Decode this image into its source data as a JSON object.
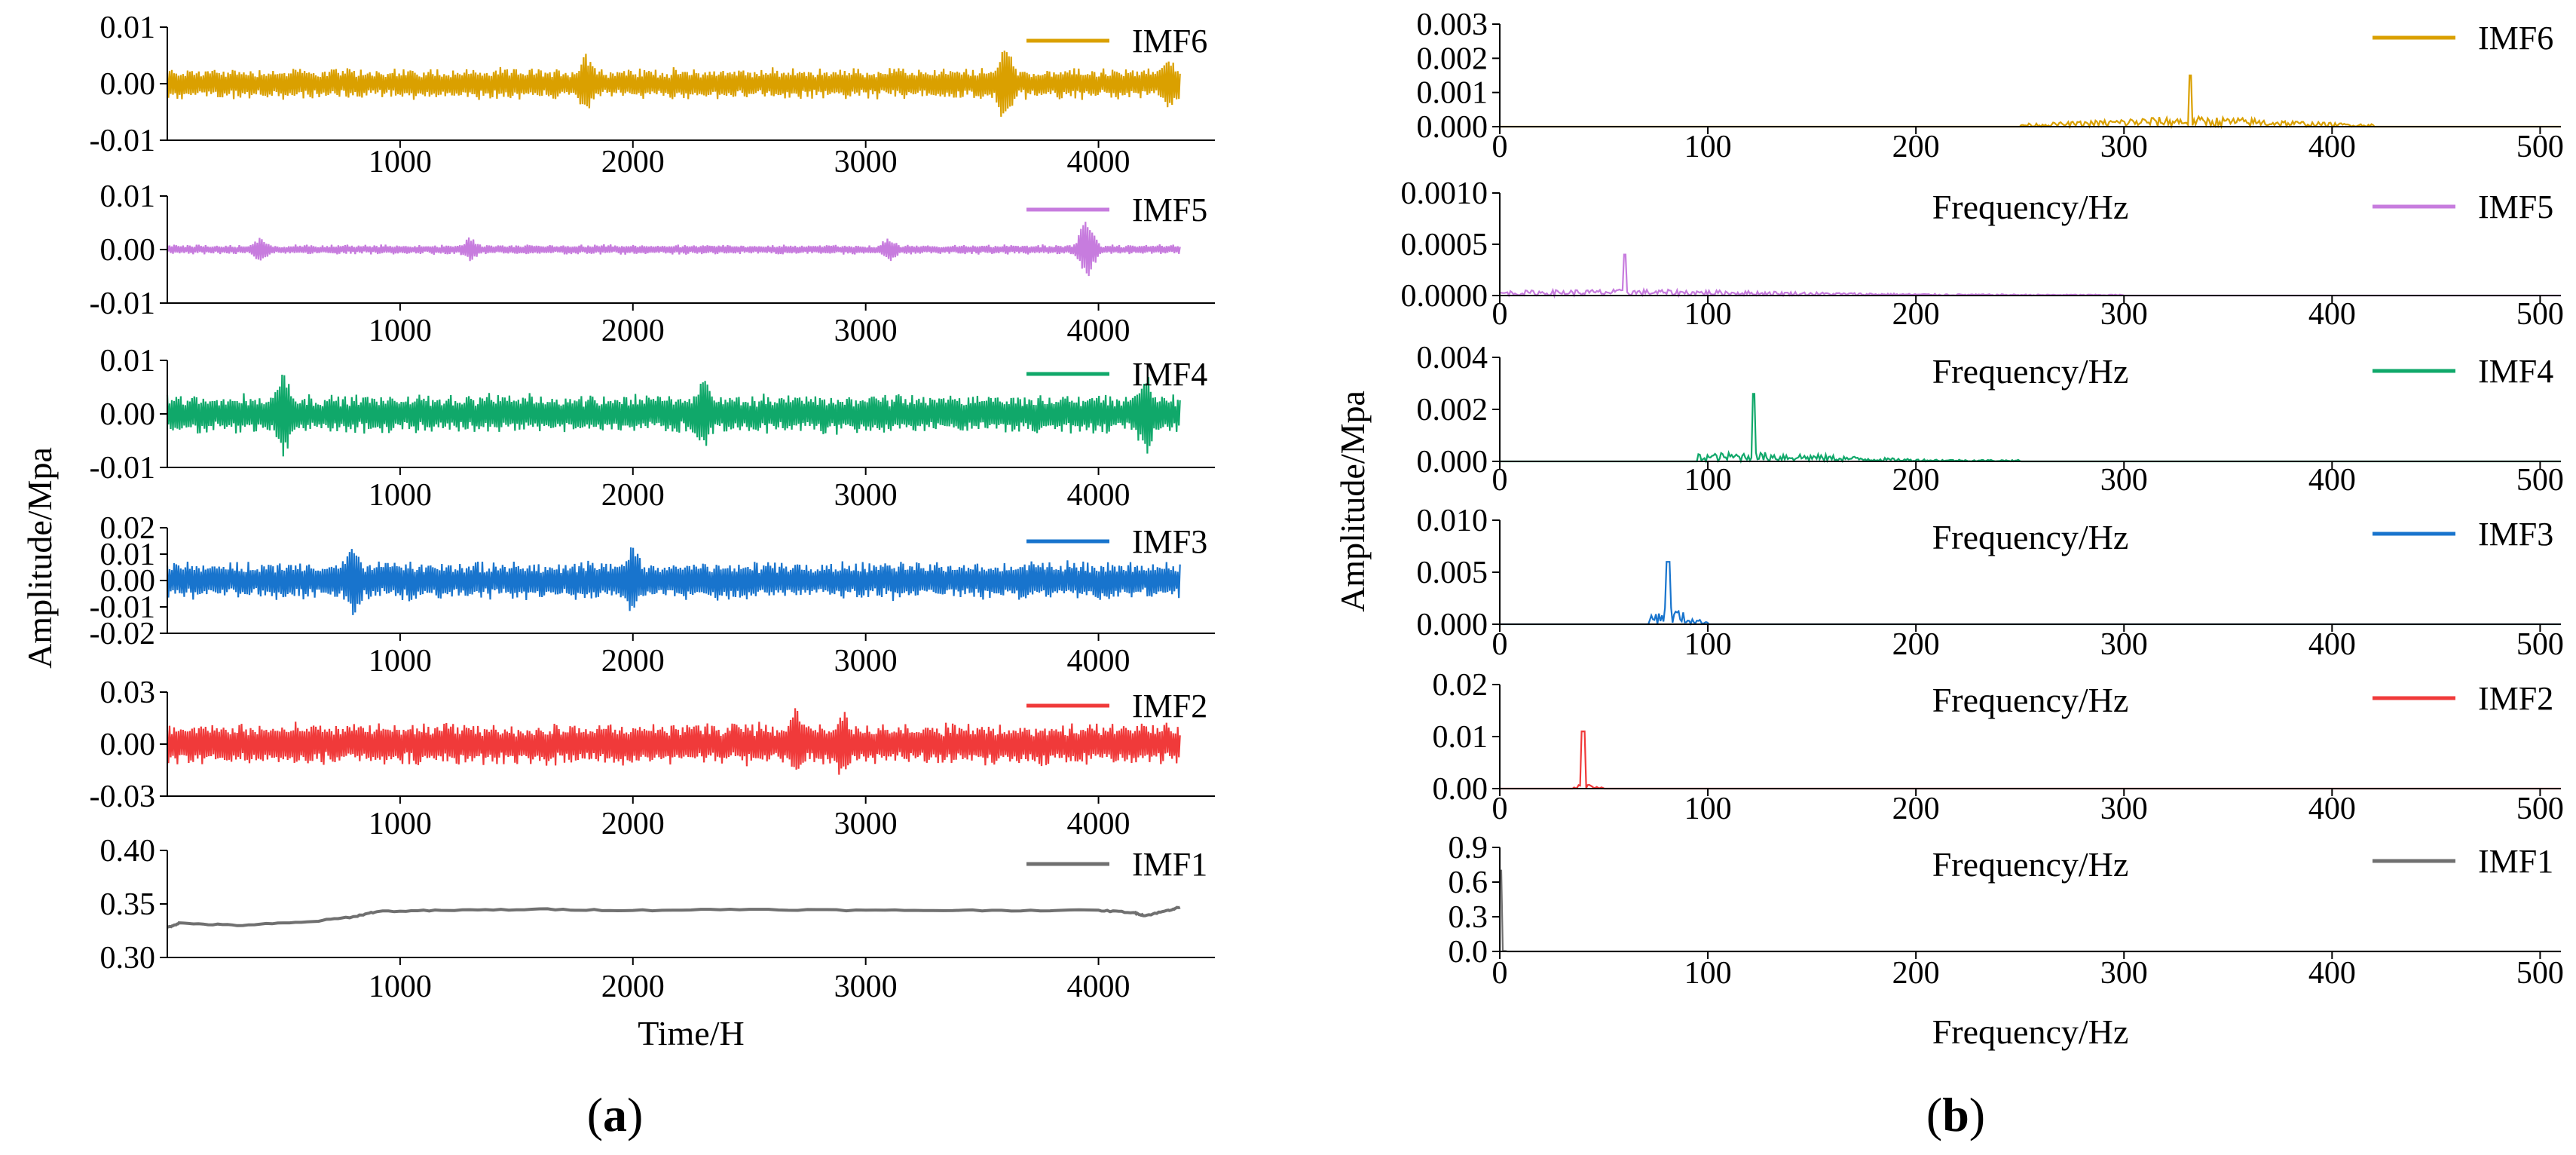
{
  "figure": {
    "panel_a_label": "a",
    "panel_b_label": "b",
    "shared_ylabel": "Amplitude/Mpa"
  },
  "chart_data": [
    {
      "type": "line",
      "panel": "a",
      "xlabel": "Time/H",
      "ylabel": "Amplitude/Mpa",
      "xlim": [
        0,
        4500
      ],
      "xticks": [
        "1000",
        "2000",
        "3000",
        "4000"
      ],
      "grid": false,
      "legend_position": "top-right",
      "subplots": [
        {
          "series": "IMF6",
          "color": "#DAA000",
          "ylim": [
            -0.01,
            0.01
          ],
          "yticks": [
            "0.01",
            "0.00",
            "-0.01"
          ],
          "signal": {
            "kind": "noise",
            "base": 0.0,
            "amp": 0.003,
            "x": [
              0,
              4350
            ],
            "bursts": [
              [
                3600,
                0.007
              ],
              [
                4300,
                0.004
              ],
              [
                1800,
                0.0045
              ]
            ]
          }
        },
        {
          "series": "IMF5",
          "color": "#C77CDE",
          "ylim": [
            -0.01,
            0.01
          ],
          "yticks": [
            "0.01",
            "0.00",
            "-0.01"
          ],
          "signal": {
            "kind": "noise",
            "base": 0.0,
            "amp": 0.001,
            "x": [
              0,
              4350
            ],
            "bursts": [
              [
                3950,
                0.006
              ],
              [
                400,
                0.002
              ],
              [
                1300,
                0.002
              ],
              [
                3100,
                0.002
              ]
            ]
          }
        },
        {
          "series": "IMF4",
          "color": "#10A86A",
          "ylim": [
            -0.01,
            0.01
          ],
          "yticks": [
            "0.01",
            "0.00",
            "-0.01"
          ],
          "signal": {
            "kind": "noise",
            "base": 0.0,
            "amp": 0.004,
            "x": [
              0,
              4350
            ],
            "bursts": [
              [
                500,
                0.007
              ],
              [
                4200,
                0.007
              ],
              [
                2300,
                0.006
              ]
            ]
          }
        },
        {
          "series": "IMF3",
          "color": "#1874CD",
          "ylim": [
            -0.02,
            0.02
          ],
          "yticks": [
            "0.02",
            "0.01",
            "0.00",
            "-0.01",
            "-0.02"
          ],
          "signal": {
            "kind": "noise",
            "base": 0.0,
            "amp": 0.008,
            "x": [
              0,
              4350
            ],
            "bursts": [
              [
                800,
                0.011
              ],
              [
                2000,
                0.011
              ]
            ]
          }
        },
        {
          "series": "IMF2",
          "color": "#F03A3A",
          "ylim": [
            -0.03,
            0.03
          ],
          "yticks": [
            "0.03",
            "0.00",
            "-0.03"
          ],
          "signal": {
            "kind": "noise",
            "base": 0.0,
            "amp": 0.013,
            "x": [
              0,
              4350
            ],
            "bursts": [
              [
                2700,
                0.017
              ],
              [
                2900,
                0.017
              ]
            ]
          }
        },
        {
          "series": "IMF1",
          "color": "#707070",
          "ylim": [
            0.3,
            0.4
          ],
          "yticks": [
            "0.40",
            "0.35",
            "0.30"
          ],
          "signal": {
            "kind": "trend",
            "x": [
              0,
              50,
              300,
              600,
              800,
              900,
              1200,
              1600,
              2000,
              2500,
              3000,
              3500,
              4000,
              4150,
              4200,
              4300,
              4350
            ],
            "y": [
              0.328,
              0.332,
              0.33,
              0.333,
              0.338,
              0.343,
              0.344,
              0.345,
              0.344,
              0.345,
              0.344,
              0.344,
              0.344,
              0.342,
              0.339,
              0.344,
              0.347
            ]
          }
        }
      ]
    },
    {
      "type": "line",
      "panel": "b",
      "xlabel": "Frequency/Hz",
      "ylabel": "Amplitude/Mpa",
      "xlim": [
        0,
        510
      ],
      "xticks": [
        "0",
        "100",
        "200",
        "300",
        "400",
        "500"
      ],
      "grid": false,
      "legend_position": "top-right",
      "subplots": [
        {
          "series": "IMF6",
          "color": "#DAA000",
          "ylim": [
            0,
            0.003
          ],
          "yticks": [
            "0.003",
            "0.002",
            "0.001",
            "0.000"
          ],
          "spectrum": {
            "peak_hz": 332,
            "peak_amp": 0.0015,
            "band_hz": [
              250,
              420
            ],
            "band_amp": 0.00025
          }
        },
        {
          "series": "IMF5",
          "color": "#C77CDE",
          "ylim": [
            0,
            0.001
          ],
          "yticks": [
            "0.0010",
            "0.0005",
            "0.0000"
          ],
          "spectrum": {
            "peak_hz": 60,
            "peak_amp": 0.0004,
            "band_hz": [
              0,
              300
            ],
            "band_amp": 5e-05
          }
        },
        {
          "series": "IMF4",
          "color": "#10A86A",
          "ylim": [
            0,
            0.004
          ],
          "yticks": [
            "0.004",
            "0.002",
            "0.000"
          ],
          "spectrum": {
            "peak_hz": 122,
            "peak_amp": 0.0026,
            "band_hz": [
              95,
              250
            ],
            "band_amp": 0.0003
          }
        },
        {
          "series": "IMF3",
          "color": "#1874CD",
          "ylim": [
            0,
            0.01
          ],
          "yticks": [
            "0.010",
            "0.005",
            "0.000"
          ],
          "spectrum": {
            "peak_hz": 81,
            "peak_amp": 0.006,
            "band_hz": [
              72,
              100
            ],
            "band_amp": 0.0015
          }
        },
        {
          "series": "IMF2",
          "color": "#F03A3A",
          "ylim": [
            0,
            0.02
          ],
          "yticks": [
            "0.02",
            "0.01",
            "0.00"
          ],
          "spectrum": {
            "peak_hz": 40,
            "peak_amp": 0.011,
            "band_hz": [
              35,
              50
            ],
            "band_amp": 0.001
          }
        },
        {
          "series": "IMF1",
          "color": "#707070",
          "ylim": [
            0,
            0.9
          ],
          "yticks": [
            "0.9",
            "0.6",
            "0.3",
            "0.0"
          ],
          "spectrum": {
            "peak_hz": 0.5,
            "peak_amp": 0.7,
            "band_hz": [
              0,
              3
            ],
            "band_amp": 0.02
          }
        }
      ]
    }
  ]
}
